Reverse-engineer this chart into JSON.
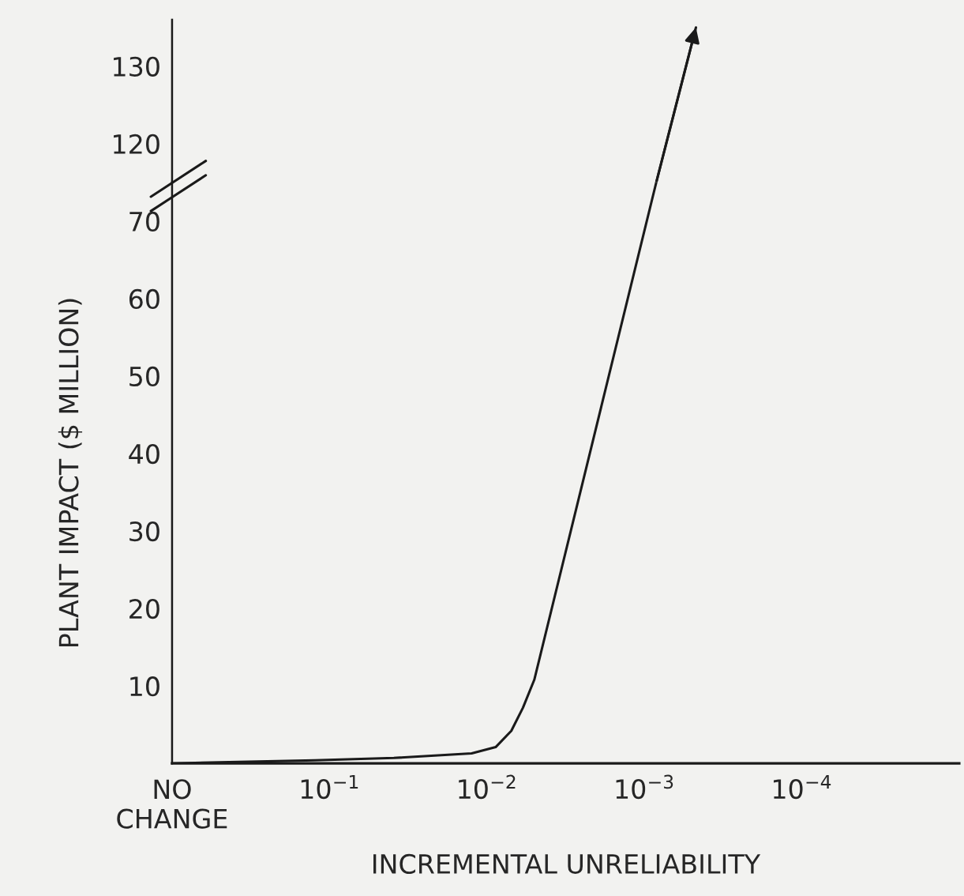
{
  "chart_data": [
    {
      "type": "line",
      "log": "x",
      "xlim": [
        1,
        1e-05
      ],
      "ylim": [
        115,
        136
      ],
      "yticks": [
        120,
        130
      ],
      "tick_labels": "y",
      "series": [
        {
          "color": "#1a1a1a",
          "x": [
            0.00084,
            0.00047
          ],
          "values": [
            115,
            135
          ]
        }
      ]
    },
    {
      "type": "line",
      "log": "x",
      "xlabel": "INCREMENTAL UNRELIABILITY",
      "ylabel": "PLANT IMPACT ($ MILLION)",
      "xlim": [
        1,
        1e-05
      ],
      "ylim": [
        0,
        75
      ],
      "xticks": [
        {
          "value": 1,
          "label": "NO\nCHANGE"
        },
        {
          "value": 0.1,
          "label": "10$^{−1}$"
        },
        {
          "value": 0.01,
          "label": "10$^{−2}$"
        },
        {
          "value": 0.001,
          "label": "10$^{−3}$"
        },
        {
          "value": 0.0001,
          "label": "10$^{−4}$"
        }
      ],
      "yticks": [
        10,
        20,
        30,
        40,
        50,
        60,
        70
      ],
      "series": [
        {
          "color": "#1a1a1a",
          "x": [
            1,
            0.124,
            0.039,
            0.0125,
            0.0088,
            0.007,
            0.0059,
            0.005,
            0.00084
          ],
          "values": [
            0,
            0.4,
            0.7,
            1.3,
            2.1,
            4.2,
            7.2,
            10.8,
            75
          ]
        }
      ]
    }
  ]
}
